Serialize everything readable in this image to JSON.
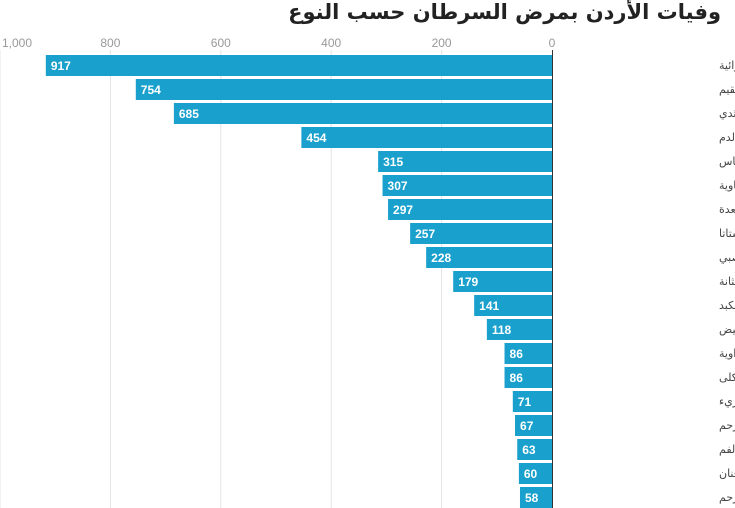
{
  "chart_data": {
    "type": "bar",
    "orientation": "horizontal",
    "title": "وفيات الأردن بمرض السرطان حسب النوع",
    "categories": [
      "سرطان الرئة والشعب الهوائية",
      "سرطان القولون والمستقيم",
      "سرطان الثدي",
      "سرطان الدم",
      "سرطان البنكرياس",
      "سرطان الغدد الليمفاوية",
      "سرطان المعدة",
      "سرطان البروستاتا",
      "سرطان الدماغ والجهاز العصبي",
      "سرطان المثانة",
      "سرطان الكبد",
      "سرطان المبيض",
      "سرطان المرارة والقناة الصفراوية",
      "سرطان الكلى",
      "سرطان المريء",
      "سرطان عنق الرحم",
      "سرطان الشفاه وتجويف الفم",
      "سرطان المايلوما متعدد الأقنان",
      "سرطان الرحم"
    ],
    "values": [
      917,
      754,
      685,
      454,
      315,
      307,
      297,
      257,
      228,
      179,
      141,
      118,
      86,
      86,
      71,
      67,
      63,
      60,
      58
    ],
    "xlim": [
      0,
      1000
    ],
    "x_axis_reversed": true,
    "x_ticks": [
      "0",
      "200",
      "400",
      "600",
      "800",
      "1,000"
    ],
    "x_tick_values": [
      0,
      200,
      400,
      600,
      800,
      1000
    ],
    "x_axis_position": "top",
    "grid": true,
    "data_labels": true,
    "bar_color": "#1aa0cc"
  }
}
